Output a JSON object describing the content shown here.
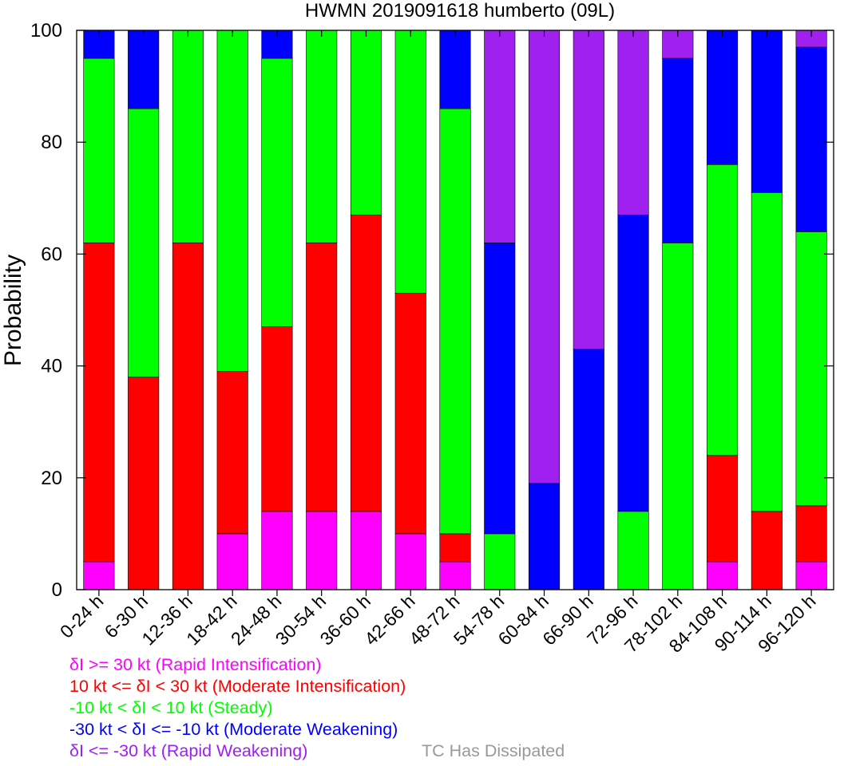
{
  "chart_data": {
    "type": "bar",
    "stacked": true,
    "title": "HWMN 2019091618 humberto (09L)",
    "xlabel": "",
    "ylabel": "Probability",
    "ylim": [
      0,
      100
    ],
    "yticks": [
      "0",
      "20",
      "40",
      "60",
      "80",
      "100"
    ],
    "grid": false,
    "categories": [
      "0-24 h",
      "6-30 h",
      "12-36 h",
      "18-42 h",
      "24-48 h",
      "30-54 h",
      "36-60 h",
      "42-66 h",
      "48-72 h",
      "54-78 h",
      "60-84 h",
      "66-90 h",
      "72-96 h",
      "78-102 h",
      "84-108 h",
      "90-114 h",
      "96-120 h"
    ],
    "series": [
      {
        "name": "δI >= 30 kt (Rapid Intensification)",
        "color": "#ff00ff",
        "values": [
          5,
          0,
          0,
          10,
          14,
          14,
          14,
          10,
          5,
          0,
          0,
          0,
          0,
          0,
          5,
          0,
          5
        ]
      },
      {
        "name": "10 kt <= δI < 30 kt (Moderate Intensification)",
        "color": "#ff0000",
        "values": [
          57,
          38,
          62,
          29,
          33,
          48,
          53,
          43,
          5,
          0,
          0,
          0,
          0,
          0,
          19,
          14,
          10
        ]
      },
      {
        "name": "-10 kt < δI < 10 kt (Steady)",
        "color": "#00ff00",
        "values": [
          33,
          48,
          38,
          61,
          48,
          38,
          33,
          47,
          76,
          10,
          0,
          0,
          14,
          62,
          52,
          57,
          49
        ]
      },
      {
        "name": "-30 kt < δI <= -10 kt (Moderate Weakening)",
        "color": "#0000ff",
        "values": [
          5,
          14,
          0,
          0,
          5,
          0,
          0,
          0,
          14,
          52,
          19,
          43,
          53,
          33,
          24,
          29,
          33
        ]
      },
      {
        "name": "δI <= -30 kt (Rapid Weakening)",
        "color": "#a020f0",
        "values": [
          0,
          0,
          0,
          0,
          0,
          0,
          0,
          0,
          0,
          38,
          81,
          57,
          33,
          5,
          0,
          0,
          3
        ]
      }
    ]
  },
  "legend": {
    "items": [
      {
        "label": "δI >= 30 kt (Rapid Intensification)",
        "color": "#ff00ff"
      },
      {
        "label": "10 kt <= δI < 30 kt (Moderate Intensification)",
        "color": "#ff0000"
      },
      {
        "label": "-10 kt < δI < 10 kt (Steady)",
        "color": "#00ff00"
      },
      {
        "label": "-30 kt < δI <= -10 kt (Moderate Weakening)",
        "color": "#0000ff"
      },
      {
        "label": "δI <= -30 kt (Rapid Weakening)",
        "color": "#a020f0"
      }
    ],
    "dissipated": {
      "label": "TC Has Dissipated",
      "color": "#999999"
    }
  }
}
